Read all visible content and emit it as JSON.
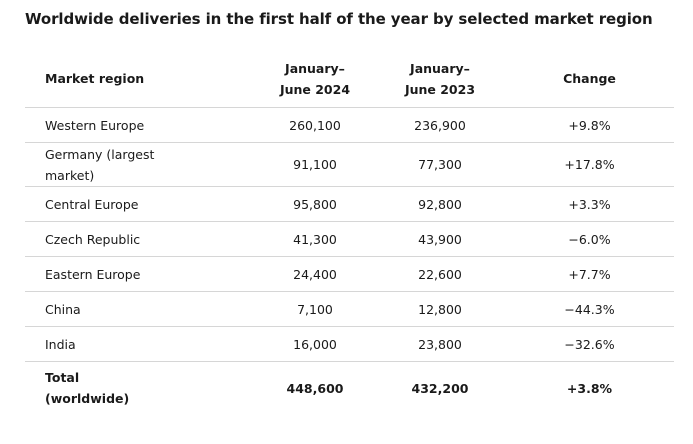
{
  "title": "Worldwide deliveries in the first half of the year by selected market region",
  "table": {
    "headers": {
      "region": "Market region",
      "jun2024_line1": "January–",
      "jun2024_line2": "June 2024",
      "jun2023_line1": "January–",
      "jun2023_line2": "June 2023",
      "change": "Change"
    },
    "rows": [
      {
        "region": "Western Europe",
        "jun2024": "260,100",
        "jun2023": "236,900",
        "change": "+9.8%"
      },
      {
        "region": "Germany (largest market)",
        "jun2024": "91,100",
        "jun2023": "77,300",
        "change": "+17.8%"
      },
      {
        "region": "Central Europe",
        "jun2024": "95,800",
        "jun2023": "92,800",
        "change": "+3.3%"
      },
      {
        "region": "Czech Republic",
        "jun2024": "41,300",
        "jun2023": "43,900",
        "change": "−6.0%"
      },
      {
        "region": "Eastern Europe",
        "jun2024": "24,400",
        "jun2023": "22,600",
        "change": "+7.7%"
      },
      {
        "region": "China",
        "jun2024": "7,100",
        "jun2023": "12,800",
        "change": "−44.3%"
      },
      {
        "region": "India",
        "jun2024": "16,000",
        "jun2023": "23,800",
        "change": "−32.6%"
      }
    ],
    "total": {
      "region": "Total (worldwide)",
      "jun2024": "448,600",
      "jun2023": "432,200",
      "change": "+3.8%"
    }
  }
}
